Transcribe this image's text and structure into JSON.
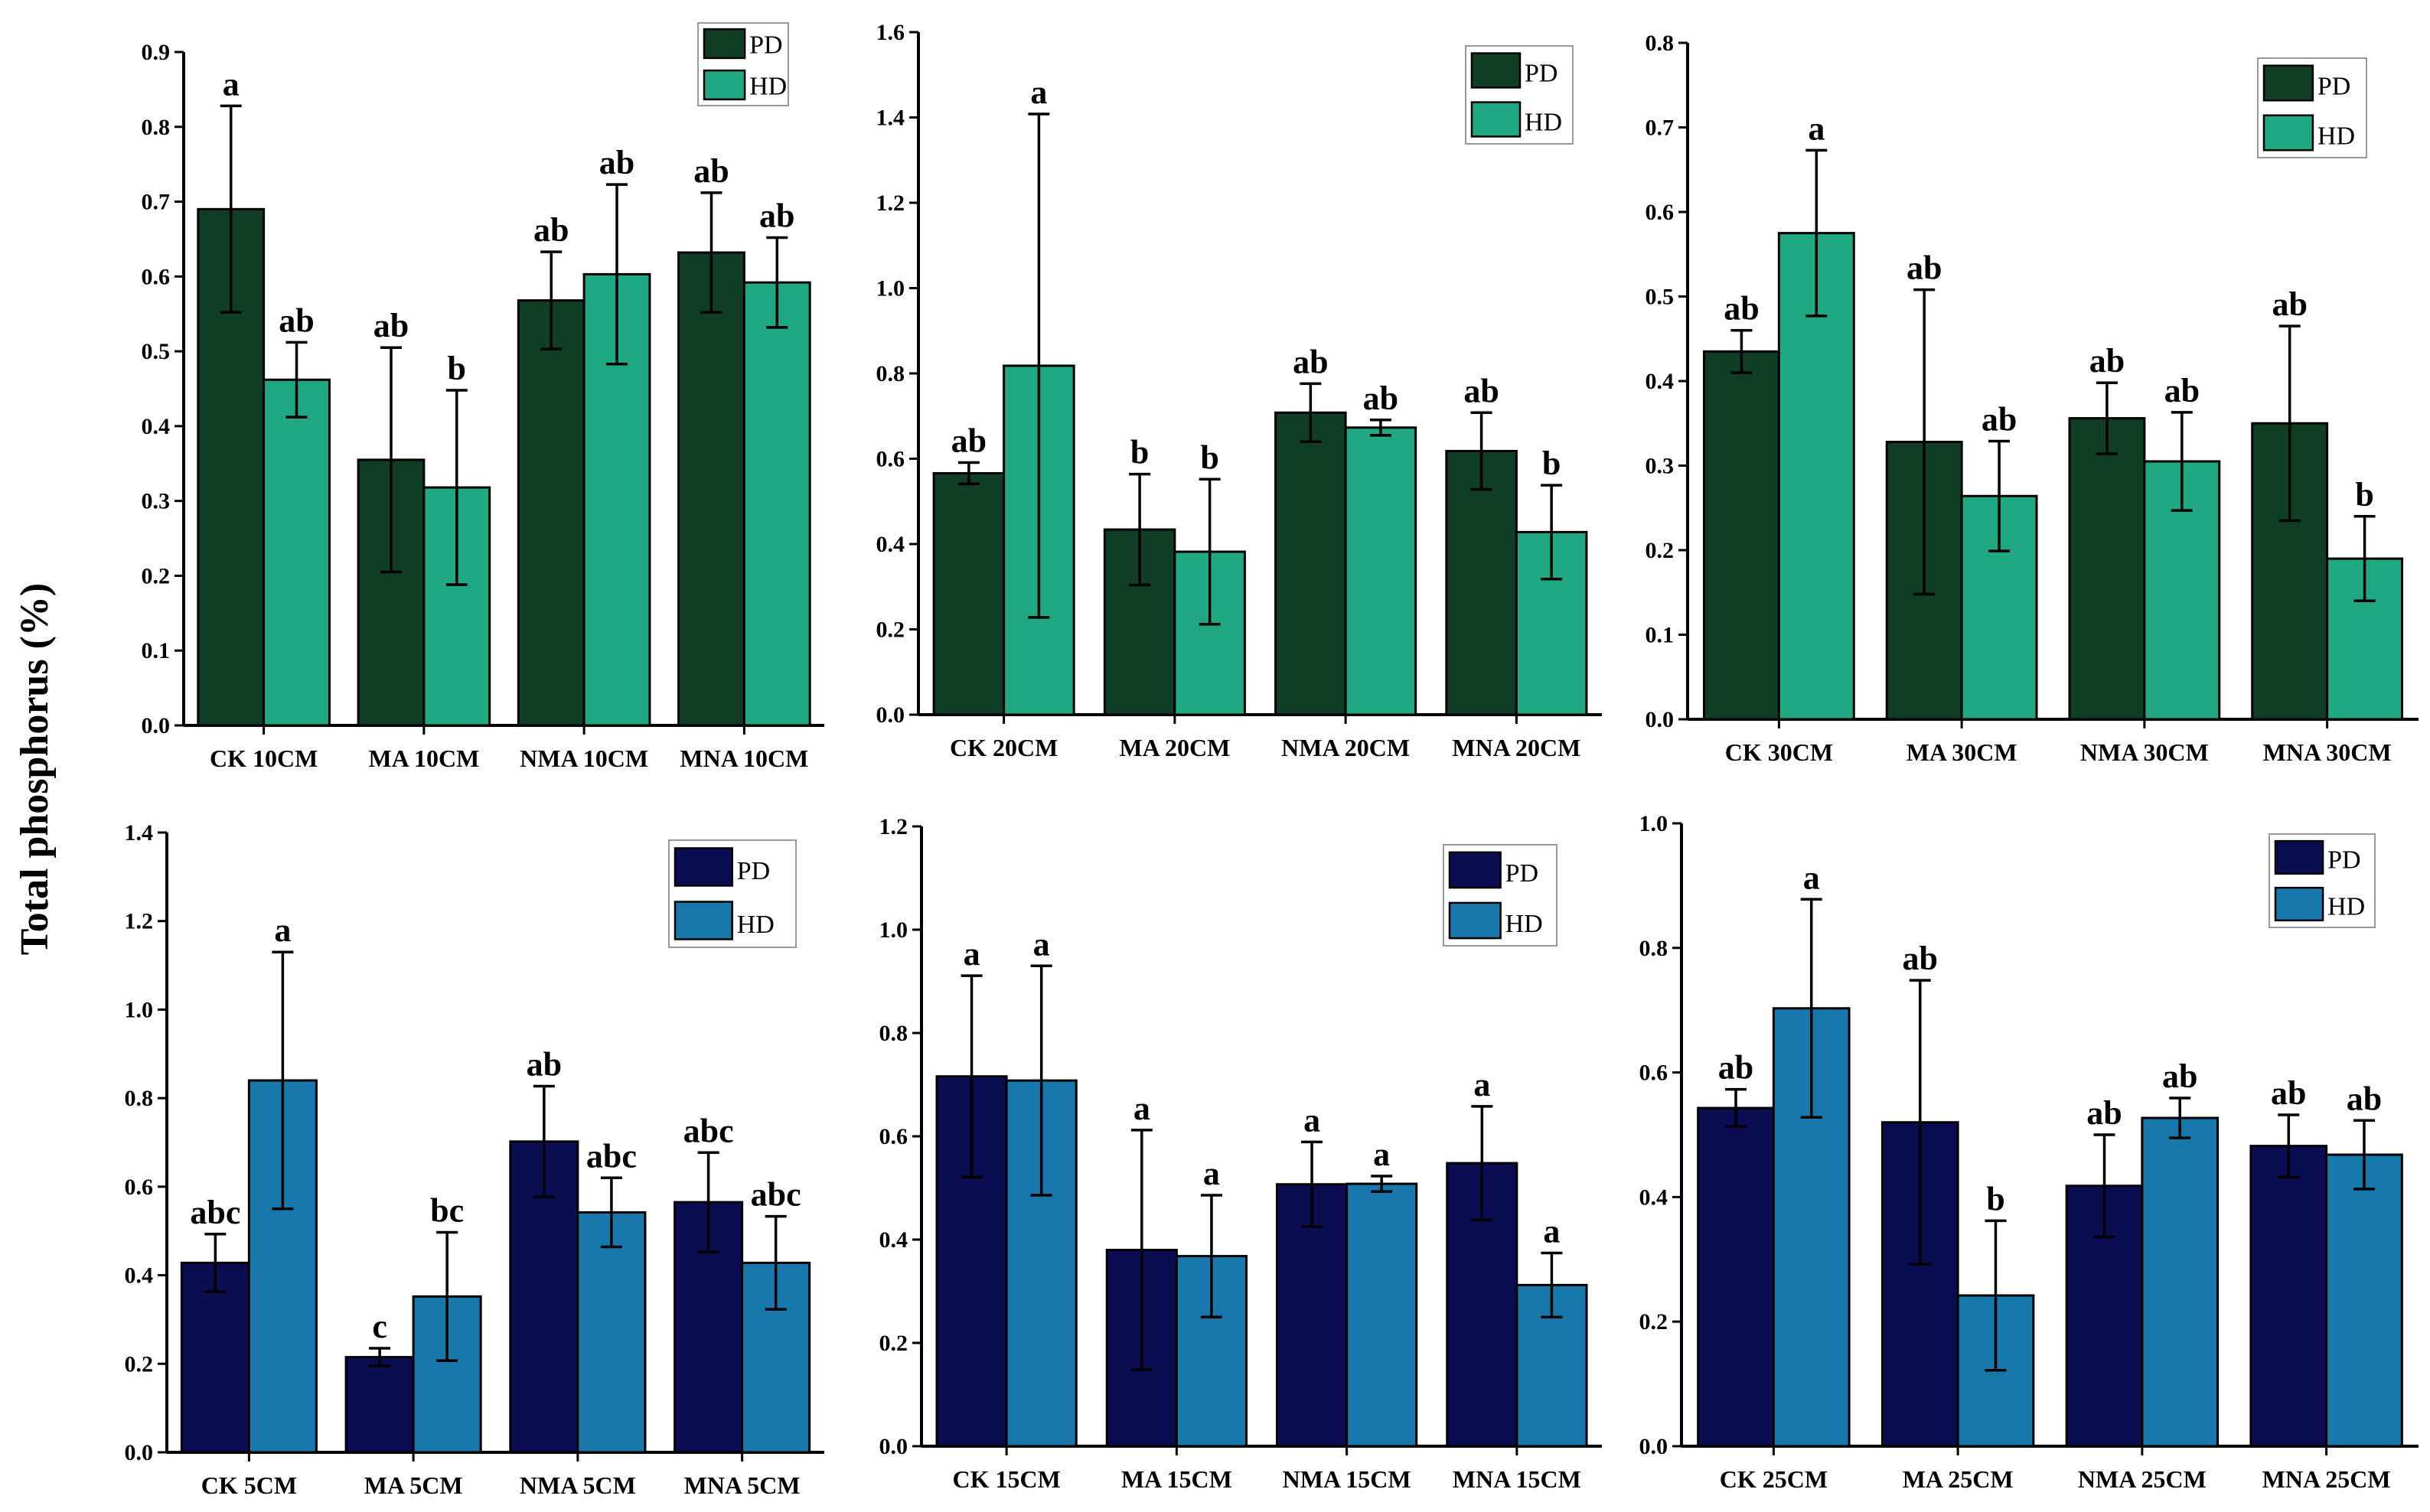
{
  "figure": {
    "ylabel": "Total phosphorus (%)"
  },
  "chart_data": [
    {
      "type": "bar",
      "panel": "top-left",
      "categories": [
        "CK 10CM",
        "MA 10CM",
        "NMA 10CM",
        "MNA 10CM"
      ],
      "series": [
        {
          "name": "PD",
          "color": "#0f3d26",
          "values": [
            0.69,
            0.355,
            0.568,
            0.632
          ],
          "errors": [
            0.138,
            0.15,
            0.065,
            0.08
          ],
          "labels": [
            "a",
            "ab",
            "ab",
            "ab"
          ]
        },
        {
          "name": "HD",
          "color": "#1fa882",
          "values": [
            0.462,
            0.318,
            0.603,
            0.592
          ],
          "errors": [
            0.05,
            0.13,
            0.12,
            0.06
          ],
          "labels": [
            "ab",
            "b",
            "ab",
            "ab"
          ]
        }
      ],
      "ylim": [
        0,
        0.9
      ],
      "yticks": [
        "0.0",
        "0.1",
        "0.2",
        "0.3",
        "0.4",
        "0.5",
        "0.6",
        "0.7",
        "0.8",
        "0.9"
      ],
      "legend": [
        "PD",
        "HD"
      ],
      "legend_position": "top-right"
    },
    {
      "type": "bar",
      "panel": "top-middle",
      "categories": [
        "CK 20CM",
        "MA 20CM",
        "NMA 20CM",
        "MNA 20CM"
      ],
      "series": [
        {
          "name": "PD",
          "color": "#0f3d26",
          "values": [
            0.566,
            0.434,
            0.708,
            0.618
          ],
          "errors": [
            0.025,
            0.13,
            0.068,
            0.09
          ],
          "labels": [
            "ab",
            "b",
            "ab",
            "ab"
          ]
        },
        {
          "name": "HD",
          "color": "#1fa882",
          "values": [
            0.818,
            0.382,
            0.673,
            0.428
          ],
          "errors": [
            0.59,
            0.17,
            0.018,
            0.11
          ],
          "labels": [
            "a",
            "b",
            "ab",
            "b"
          ]
        }
      ],
      "ylim": [
        0,
        1.6
      ],
      "yticks": [
        "0.0",
        "0.2",
        "0.4",
        "0.6",
        "0.8",
        "1.0",
        "1.2",
        "1.4",
        "1.6"
      ],
      "legend": [
        "PD",
        "HD"
      ],
      "legend_position": "top-right"
    },
    {
      "type": "bar",
      "panel": "top-right",
      "categories": [
        "CK 30CM",
        "MA 30CM",
        "NMA 30CM",
        "MNA 30CM"
      ],
      "series": [
        {
          "name": "PD",
          "color": "#0f3d26",
          "values": [
            0.435,
            0.328,
            0.356,
            0.35
          ],
          "errors": [
            0.025,
            0.18,
            0.042,
            0.115
          ],
          "labels": [
            "ab",
            "ab",
            "ab",
            "ab"
          ]
        },
        {
          "name": "HD",
          "color": "#1fa882",
          "values": [
            0.575,
            0.264,
            0.305,
            0.19
          ],
          "errors": [
            0.098,
            0.065,
            0.058,
            0.05
          ],
          "labels": [
            "a",
            "ab",
            "ab",
            "b"
          ]
        }
      ],
      "ylim": [
        0,
        0.8
      ],
      "yticks": [
        "0.0",
        "0.1",
        "0.2",
        "0.3",
        "0.4",
        "0.5",
        "0.6",
        "0.7",
        "0.8"
      ],
      "legend": [
        "PD",
        "HD"
      ],
      "legend_position": "top-right"
    },
    {
      "type": "bar",
      "panel": "bottom-left",
      "categories": [
        "CK 5CM",
        "MA 5CM",
        "NMA 5CM",
        "MNA 5CM"
      ],
      "series": [
        {
          "name": "PD",
          "color": "#0b0d52",
          "values": [
            0.428,
            0.215,
            0.702,
            0.565
          ],
          "errors": [
            0.065,
            0.02,
            0.125,
            0.112
          ],
          "labels": [
            "abc",
            "c",
            "ab",
            "abc"
          ]
        },
        {
          "name": "HD",
          "color": "#1878ac",
          "values": [
            0.84,
            0.352,
            0.542,
            0.428
          ],
          "errors": [
            0.29,
            0.145,
            0.078,
            0.105
          ],
          "labels": [
            "a",
            "bc",
            "abc",
            "abc"
          ]
        }
      ],
      "ylim": [
        0,
        1.4
      ],
      "yticks": [
        "0.0",
        "0.2",
        "0.4",
        "0.6",
        "0.8",
        "1.0",
        "1.2",
        "1.4"
      ],
      "legend": [
        "PD",
        "HD"
      ],
      "legend_position": "top-right"
    },
    {
      "type": "bar",
      "panel": "bottom-middle",
      "categories": [
        "CK 15CM",
        "MA 15CM",
        "NMA 15CM",
        "MNA 15CM"
      ],
      "series": [
        {
          "name": "PD",
          "color": "#0b0d52",
          "values": [
            0.716,
            0.38,
            0.507,
            0.548
          ],
          "errors": [
            0.195,
            0.232,
            0.082,
            0.11
          ],
          "labels": [
            "a",
            "a",
            "a",
            "a"
          ]
        },
        {
          "name": "HD",
          "color": "#1878ac",
          "values": [
            0.708,
            0.368,
            0.508,
            0.312
          ],
          "errors": [
            0.222,
            0.118,
            0.015,
            0.062
          ],
          "labels": [
            "a",
            "a",
            "a",
            "a"
          ]
        }
      ],
      "ylim": [
        0,
        1.2
      ],
      "yticks": [
        "0.0",
        "0.2",
        "0.4",
        "0.6",
        "0.8",
        "1.0",
        "1.2"
      ],
      "legend": [
        "PD",
        "HD"
      ],
      "legend_position": "top-right"
    },
    {
      "type": "bar",
      "panel": "bottom-right",
      "categories": [
        "CK 25CM",
        "MA 25CM",
        "NMA 25CM",
        "MNA 25CM"
      ],
      "series": [
        {
          "name": "PD",
          "color": "#0b0d52",
          "values": [
            0.543,
            0.52,
            0.418,
            0.482
          ],
          "errors": [
            0.03,
            0.228,
            0.082,
            0.05
          ],
          "labels": [
            "ab",
            "ab",
            "ab",
            "ab"
          ]
        },
        {
          "name": "HD",
          "color": "#1878ac",
          "values": [
            0.703,
            0.242,
            0.527,
            0.468
          ],
          "errors": [
            0.175,
            0.12,
            0.032,
            0.055
          ],
          "labels": [
            "a",
            "b",
            "ab",
            "ab"
          ]
        }
      ],
      "ylim": [
        0,
        1.0
      ],
      "yticks": [
        "0.0",
        "0.2",
        "0.4",
        "0.6",
        "0.8",
        "1.0"
      ],
      "legend": [
        "PD",
        "HD"
      ],
      "legend_position": "top-right"
    }
  ]
}
